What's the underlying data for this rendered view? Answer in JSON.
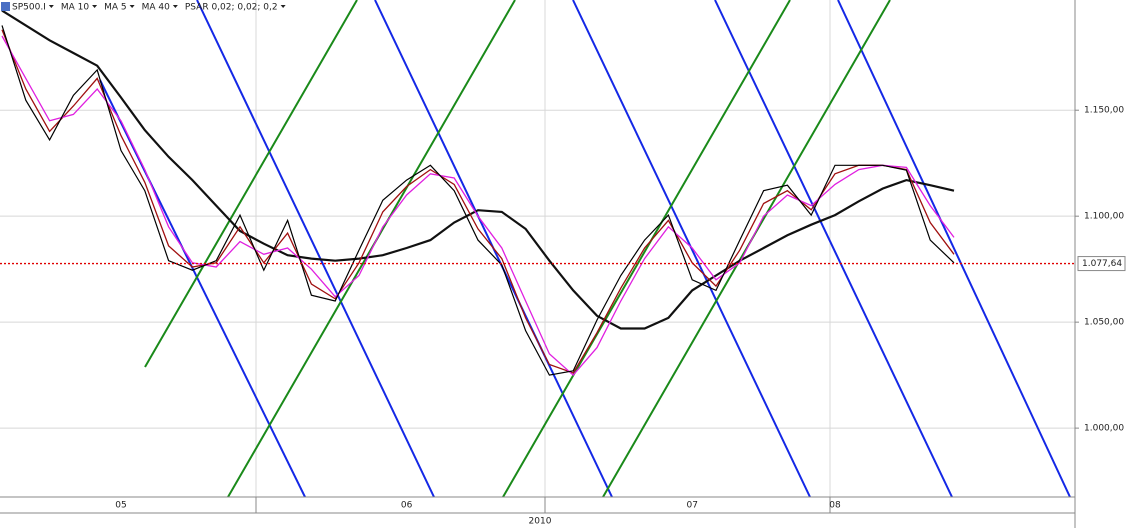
{
  "chart_data": {
    "type": "line",
    "categories": [
      null,
      null,
      null,
      null,
      null,
      "05",
      null,
      null,
      null,
      null,
      null,
      null,
      null,
      null,
      null,
      null,
      null,
      "06",
      null,
      null,
      null,
      null,
      null,
      null,
      null,
      null,
      null,
      null,
      null,
      "07",
      null,
      null,
      null,
      null,
      null,
      "08",
      null,
      null,
      null,
      null,
      null
    ],
    "x_axis_year": "2010",
    "series": [
      {
        "name": "SP500.I",
        "color": "#000000",
        "width": 1.2,
        "values": [
          1190,
          1154.7,
          1136,
          1157,
          1169,
          1131,
          1112,
          1079,
          1074.5,
          1079,
          1100.5,
          1074.5,
          1098,
          1062.7,
          1060,
          1084,
          1107.5,
          1117,
          1124,
          1112,
          1088.7,
          1077,
          1046,
          1025,
          1027,
          1051,
          1072,
          1088.7,
          1100.5,
          1070,
          1065,
          1088.7,
          1112,
          1114.6,
          1100.5,
          1124,
          1124,
          1124,
          1121.7,
          1088.7,
          1078
        ]
      },
      {
        "name": "MA 10",
        "color": "#e020e0",
        "width": 1.3,
        "values": [
          1185,
          1165,
          1145,
          1148,
          1160,
          1145,
          1122,
          1095,
          1078,
          1076,
          1088,
          1082,
          1085,
          1075,
          1062,
          1072,
          1095,
          1110,
          1120,
          1118,
          1100,
          1085,
          1060,
          1035,
          1025,
          1038,
          1060,
          1080,
          1095,
          1085,
          1070,
          1078,
          1100,
          1110,
          1105,
          1115,
          1122,
          1124,
          1123,
          1105,
          1090
        ]
      },
      {
        "name": "MA 5",
        "color": "#a01010",
        "width": 1.3,
        "values": [
          1188,
          1160,
          1140,
          1152,
          1165,
          1138,
          1116,
          1086,
          1076,
          1078,
          1095,
          1078,
          1092,
          1068,
          1061,
          1078,
          1102,
          1114,
          1122,
          1115,
          1094,
          1080,
          1052,
          1030,
          1026,
          1045,
          1066,
          1085,
          1098,
          1078,
          1067,
          1084,
          1106,
          1112,
          1103,
          1120,
          1124,
          1124,
          1122,
          1097,
          1082
        ]
      },
      {
        "name": "MA 40",
        "color": "#111111",
        "width": 2.2,
        "values": [
          1197,
          1190,
          1183,
          1177,
          1171,
          1156,
          1140.6,
          1128,
          1117,
          1105,
          1093,
          1087,
          1081.6,
          1080,
          1079,
          1080,
          1081.6,
          1085,
          1088.7,
          1097,
          1102.8,
          1102,
          1094,
          1079,
          1065,
          1053,
          1047,
          1047,
          1052,
          1065,
          1072,
          1079,
          1085,
          1091,
          1096,
          1100.5,
          1107,
          1113,
          1117,
          1114.6,
          1112
        ]
      }
    ],
    "indicator_label": "PSAR 0,02; 0,02; 0,2",
    "ylim": [
      967.5,
      1202
    ],
    "yticks": [
      {
        "value": 1000,
        "label": "1.000,00"
      },
      {
        "value": 1050,
        "label": "1.050,00"
      },
      {
        "value": 1100,
        "label": "1.100,00"
      },
      {
        "value": 1150,
        "label": "1.150,00"
      }
    ],
    "current_price": {
      "value": 1077.64,
      "label": "1.077,64"
    },
    "grid": true
  }
}
